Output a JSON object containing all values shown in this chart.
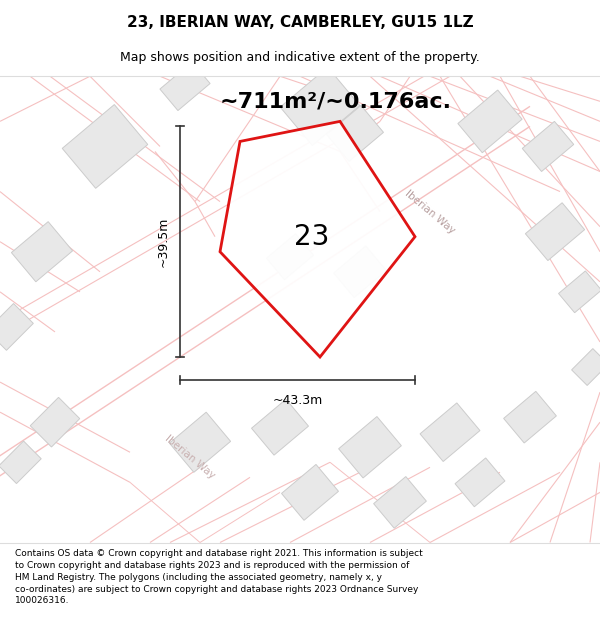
{
  "title_line1": "23, IBERIAN WAY, CAMBERLEY, GU15 1LZ",
  "title_line2": "Map shows position and indicative extent of the property.",
  "footer_text": "Contains OS data © Crown copyright and database right 2021. This information is subject to Crown copyright and database rights 2023 and is reproduced with the permission of HM Land Registry. The polygons (including the associated geometry, namely x, y co-ordinates) are subject to Crown copyright and database rights 2023 Ordnance Survey 100026316.",
  "area_label": "~711m²/~0.176ac.",
  "plot_number": "23",
  "dim_vertical": "~39.5m",
  "dim_horizontal": "~43.3m",
  "map_bg": "#ffffff",
  "road_color": "#f5c0c0",
  "building_color": "#e8e8e8",
  "building_edge": "#cccccc",
  "plot_fill": "none",
  "plot_edge": "#dd0000",
  "plot_edge_width": 2.0,
  "title_fontsize": 11,
  "subtitle_fontsize": 9,
  "footer_fontsize": 6.5,
  "area_fontsize": 16,
  "dim_fontsize": 9,
  "plot_num_fontsize": 20
}
